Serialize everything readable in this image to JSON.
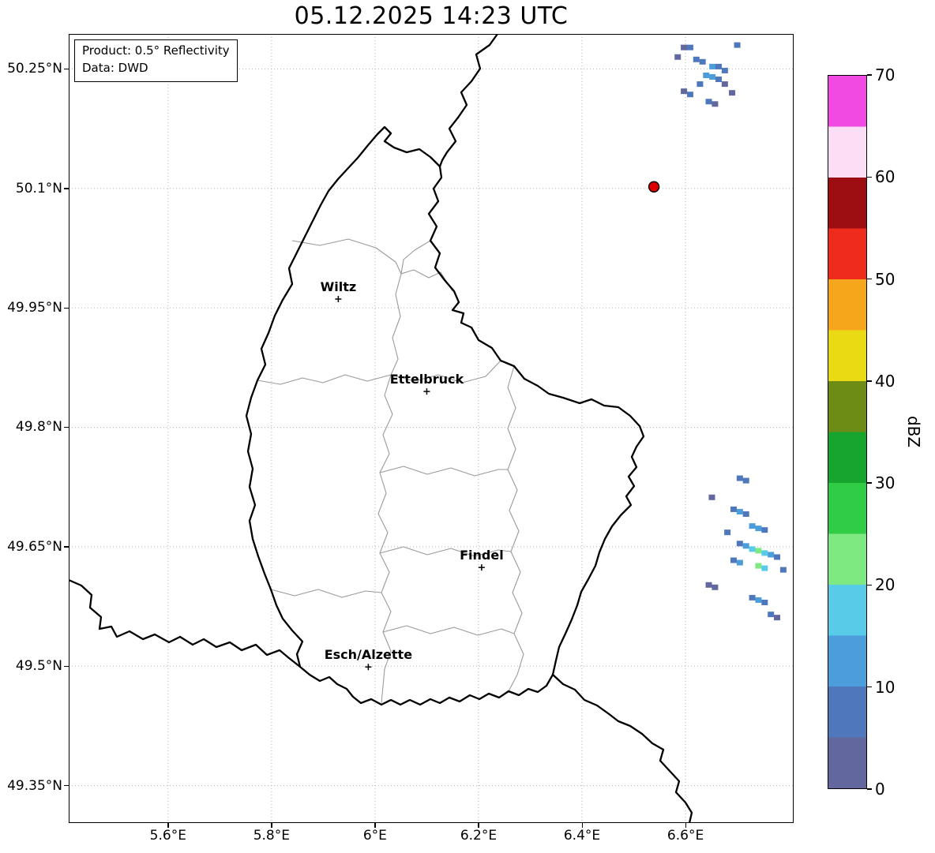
{
  "title": "05.12.2025 14:23 UTC",
  "annotation": {
    "line1": "Product: 0.5° Reflectivity",
    "line2": "Data: DWD"
  },
  "colorbar": {
    "label": "dBZ",
    "min": 0,
    "max": 70,
    "ticks": [
      0,
      10,
      20,
      30,
      40,
      50,
      60,
      70
    ],
    "bands": [
      {
        "from": 0,
        "to": 5,
        "color": "#62689e"
      },
      {
        "from": 5,
        "to": 10,
        "color": "#4e77bc"
      },
      {
        "from": 10,
        "to": 15,
        "color": "#4c9ddb"
      },
      {
        "from": 15,
        "to": 20,
        "color": "#57cbe8"
      },
      {
        "from": 20,
        "to": 25,
        "color": "#7ee881"
      },
      {
        "from": 25,
        "to": 30,
        "color": "#31cc45"
      },
      {
        "from": 30,
        "to": 35,
        "color": "#17a52f"
      },
      {
        "from": 35,
        "to": 40,
        "color": "#6d8c15"
      },
      {
        "from": 40,
        "to": 45,
        "color": "#e9da13"
      },
      {
        "from": 45,
        "to": 50,
        "color": "#f6a61b"
      },
      {
        "from": 50,
        "to": 55,
        "color": "#ef2b1c"
      },
      {
        "from": 55,
        "to": 60,
        "color": "#9d0e12"
      },
      {
        "from": 60,
        "to": 65,
        "color": "#fbdef5"
      },
      {
        "from": 65,
        "to": 70,
        "color": "#f04ae2"
      }
    ]
  },
  "chart_data": {
    "type": "heatmap",
    "title": "05.12.2025 14:23 UTC",
    "product": "0.5° Reflectivity",
    "source": "DWD",
    "units": "dBZ",
    "lon_range": [
      5.408,
      6.809
    ],
    "lat_range": [
      49.303,
      50.294
    ],
    "lon_ticks": {
      "values": [
        5.6,
        5.8,
        6.0,
        6.2,
        6.4,
        6.6
      ],
      "labels": [
        "5.6°E",
        "5.8°E",
        "6°E",
        "6.2°E",
        "6.4°E",
        "6.6°E"
      ]
    },
    "lat_ticks": {
      "values": [
        50.25,
        50.1,
        49.95,
        49.8,
        49.65,
        49.5,
        49.35
      ],
      "labels": [
        "50.25°N",
        "50.1°N",
        "49.95°N",
        "49.8°N",
        "49.65°N",
        "49.5°N",
        "49.35°N"
      ]
    },
    "cities": [
      {
        "name": "Wiltz",
        "lon": 5.929,
        "lat": 49.961
      },
      {
        "name": "Ettelbruck",
        "lon": 6.1,
        "lat": 49.845
      },
      {
        "name": "Findel",
        "lon": 6.206,
        "lat": 49.624
      },
      {
        "name": "Esch/Alzette",
        "lon": 5.987,
        "lat": 49.499
      }
    ],
    "station_marker": {
      "lon": 6.539,
      "lat": 50.102,
      "color": "#dd0000"
    },
    "echoes": [
      [
        6.597,
        50.277,
        4
      ],
      [
        6.609,
        50.277,
        7
      ],
      [
        6.7,
        50.28,
        6
      ],
      [
        6.585,
        50.265,
        3
      ],
      [
        6.621,
        50.262,
        9
      ],
      [
        6.633,
        50.259,
        6
      ],
      [
        6.652,
        50.253,
        11
      ],
      [
        6.664,
        50.253,
        8
      ],
      [
        6.676,
        50.248,
        5
      ],
      [
        6.64,
        50.242,
        12
      ],
      [
        6.652,
        50.24,
        14
      ],
      [
        6.664,
        50.237,
        9
      ],
      [
        6.628,
        50.231,
        7
      ],
      [
        6.676,
        50.231,
        4
      ],
      [
        6.597,
        50.222,
        3
      ],
      [
        6.609,
        50.218,
        5
      ],
      [
        6.645,
        50.209,
        6
      ],
      [
        6.657,
        50.206,
        3
      ],
      [
        6.69,
        50.22,
        2
      ],
      [
        6.705,
        49.736,
        5
      ],
      [
        6.717,
        49.733,
        8
      ],
      [
        6.651,
        49.712,
        4
      ],
      [
        6.693,
        49.697,
        9
      ],
      [
        6.705,
        49.694,
        12
      ],
      [
        6.717,
        49.691,
        7
      ],
      [
        6.729,
        49.676,
        10
      ],
      [
        6.741,
        49.673,
        13
      ],
      [
        6.753,
        49.671,
        9
      ],
      [
        6.681,
        49.668,
        6
      ],
      [
        6.705,
        49.654,
        8
      ],
      [
        6.717,
        49.651,
        12
      ],
      [
        6.729,
        49.647,
        17
      ],
      [
        6.741,
        49.645,
        22
      ],
      [
        6.753,
        49.642,
        19
      ],
      [
        6.765,
        49.64,
        12
      ],
      [
        6.777,
        49.637,
        9
      ],
      [
        6.693,
        49.633,
        7
      ],
      [
        6.705,
        49.63,
        10
      ],
      [
        6.741,
        49.626,
        23
      ],
      [
        6.753,
        49.623,
        16
      ],
      [
        6.789,
        49.621,
        6
      ],
      [
        6.645,
        49.602,
        4
      ],
      [
        6.657,
        49.599,
        3
      ],
      [
        6.729,
        49.586,
        9
      ],
      [
        6.741,
        49.583,
        13
      ],
      [
        6.753,
        49.58,
        7
      ],
      [
        6.765,
        49.565,
        5
      ],
      [
        6.777,
        49.561,
        4
      ]
    ]
  }
}
